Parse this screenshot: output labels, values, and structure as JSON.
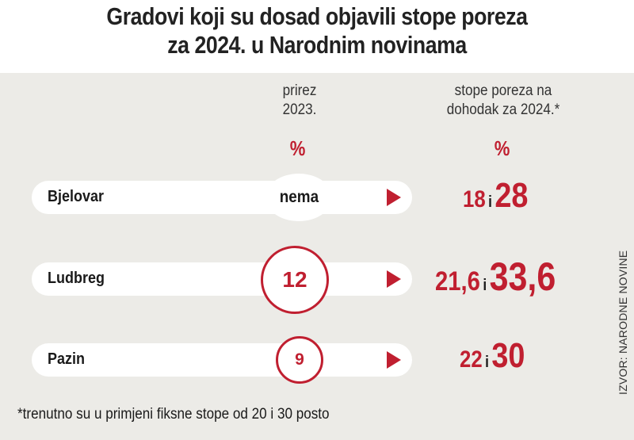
{
  "title_line1": "Gradovi koji su dosad objavili stope poreza",
  "title_line2": "za 2024. u Narodnim novinama",
  "columns": {
    "prirez_line1": "prirez",
    "prirez_line2": "2023.",
    "prirez_unit": "%",
    "stope_line1": "stope poreza na",
    "stope_line2": "dohodak za 2024.*",
    "stope_unit": "%"
  },
  "rows": [
    {
      "city": "Bjelovar",
      "prirez": "nema",
      "rate_low": "18",
      "conj": "i",
      "rate_high": "28"
    },
    {
      "city": "Ludbreg",
      "prirez": "12",
      "rate_low": "21,6",
      "conj": "i",
      "rate_high": "33,6"
    },
    {
      "city": "Pazin",
      "prirez": "9",
      "rate_low": "22",
      "conj": "i",
      "rate_high": "30"
    }
  ],
  "footnote": "*trenutno su u primjeni fiksne stope od 20 i 30 posto",
  "source": "IZVOR: NARODNE NOVINE",
  "colors": {
    "accent": "#c01f30",
    "panel": "#ecebe7"
  }
}
